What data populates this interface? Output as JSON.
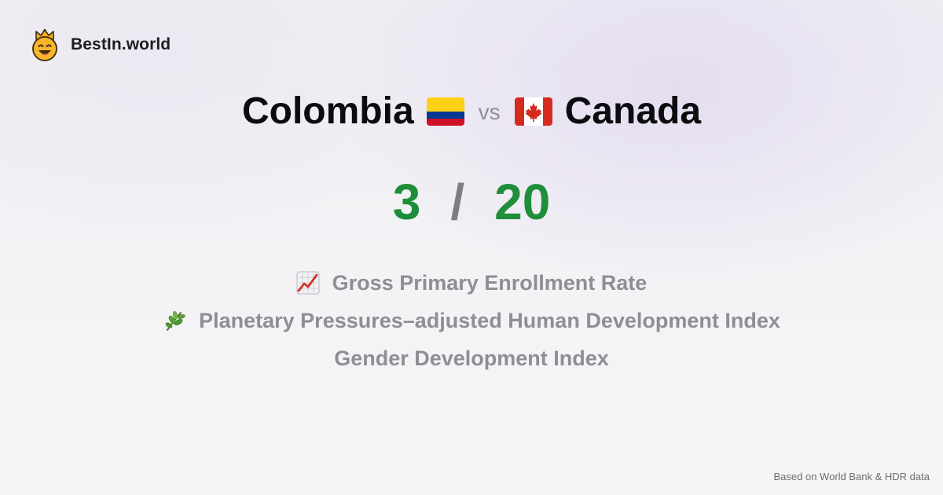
{
  "brand": {
    "name": "BestIn.world",
    "logo_icon": "crown-face-icon"
  },
  "comparison": {
    "country_a": {
      "name": "Colombia",
      "flag_icon": "colombia-flag-icon"
    },
    "vs_label": "vs",
    "country_b": {
      "name": "Canada",
      "flag_icon": "canada-flag-icon"
    }
  },
  "score": {
    "country_a": "3",
    "separator": "/",
    "country_b": "20",
    "color": "#1e8e3a"
  },
  "metrics": [
    {
      "label": "Gross Primary Enrollment Rate",
      "icon": "chart-increasing-icon"
    },
    {
      "label": "Planetary Pressures–adjusted Human Development Index",
      "icon": "herb-icon"
    },
    {
      "label": "Gender Development Index",
      "icon": ""
    }
  ],
  "footer": {
    "source_text": "Based on World Bank & HDR data"
  }
}
